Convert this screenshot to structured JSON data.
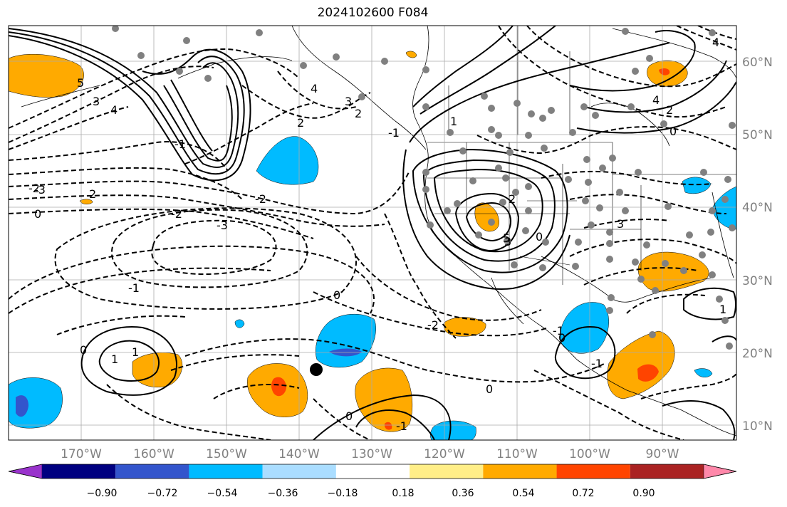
{
  "title": "2024102600 F084",
  "lon_labels": [
    "170°W",
    "160°W",
    "150°W",
    "140°W",
    "130°W",
    "120°W",
    "110°W",
    "100°W",
    "90°W"
  ],
  "lat_labels": [
    "60°N",
    "50°N",
    "40°N",
    "30°N",
    "20°N",
    "10°N"
  ],
  "colorbar": {
    "tick_labels": [
      "−0.90",
      "−0.72",
      "−0.54",
      "−0.36",
      "−0.18",
      "0.18",
      "0.36",
      "0.54",
      "0.72",
      "0.90"
    ],
    "colors": [
      "#9933cc",
      "#000080",
      "#3355cc",
      "#00bbff",
      "#aaddff",
      "#ffffff",
      "#ffee88",
      "#ffaa00",
      "#ff4400",
      "#aa2222",
      "#ff88aa"
    ]
  },
  "contour_labels": [
    "0",
    "1",
    "1",
    "2",
    "3",
    "4",
    "5",
    "-1",
    "-2",
    "-3",
    "0",
    "-2",
    "-3",
    "-2",
    "-1",
    "0",
    "-2",
    "0",
    "-1",
    "0",
    "2",
    "3",
    "2",
    "4",
    "-1",
    "1",
    "2",
    "0",
    "3",
    "5",
    "4",
    "-1",
    "0",
    "-1",
    "1",
    "0",
    "4",
    "2",
    "3"
  ],
  "colors": {
    "orange": "#ffaa00",
    "red": "#ff4400",
    "blue": "#00bbff",
    "dark_blue": "#3355cc",
    "grid": "#aaaaaa",
    "dots": "#808080"
  }
}
